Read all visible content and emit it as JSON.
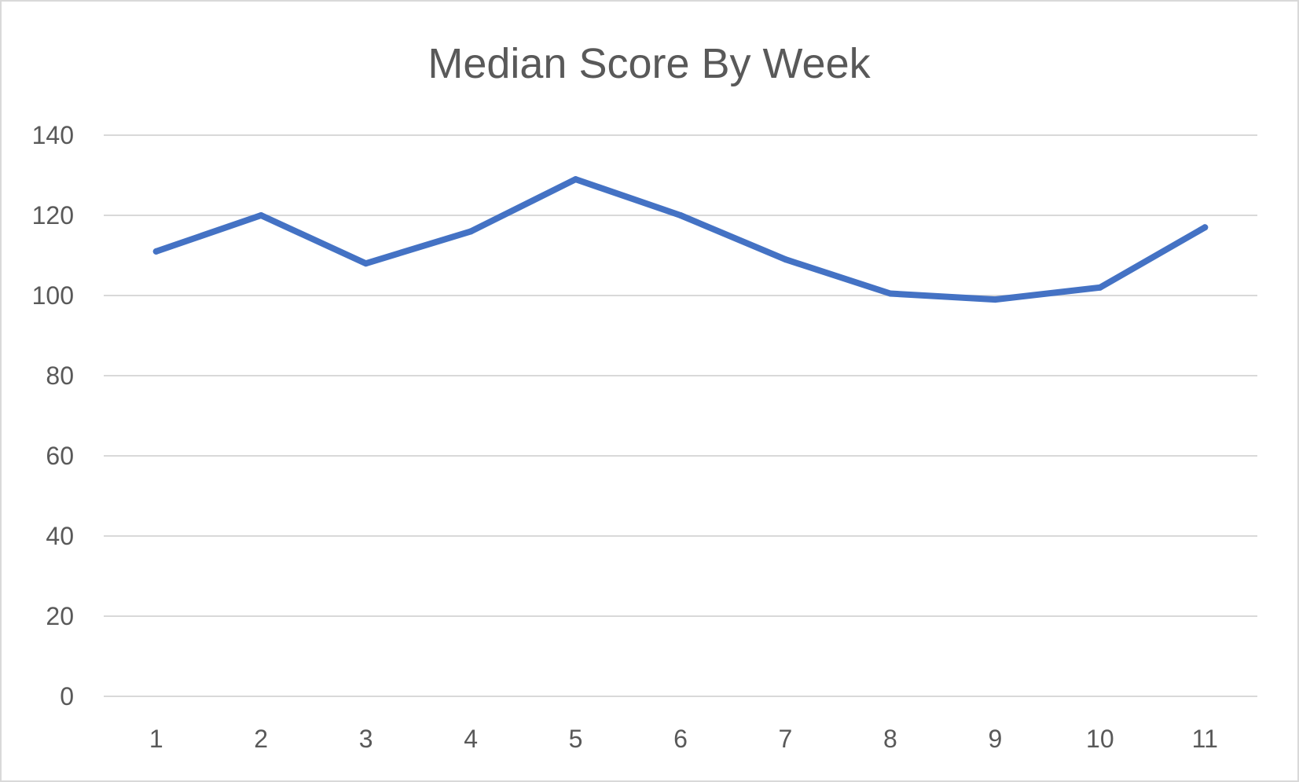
{
  "chart_data": {
    "type": "line",
    "title": "Median Score By Week",
    "xlabel": "",
    "ylabel": "",
    "categories": [
      "1",
      "2",
      "3",
      "4",
      "5",
      "6",
      "7",
      "8",
      "9",
      "10",
      "11"
    ],
    "series": [
      {
        "values": [
          111,
          120,
          108,
          116,
          129,
          120,
          109,
          100.5,
          99,
          102,
          117
        ]
      }
    ],
    "y_ticks": [
      "0",
      "20",
      "40",
      "60",
      "80",
      "100",
      "120",
      "140"
    ],
    "ylim": [
      0,
      140
    ],
    "grid": true,
    "legend": "none",
    "colors": {
      "line": "#4472c4",
      "grid": "#d9d9d9",
      "text": "#595959",
      "border": "#d9d9d9"
    }
  }
}
